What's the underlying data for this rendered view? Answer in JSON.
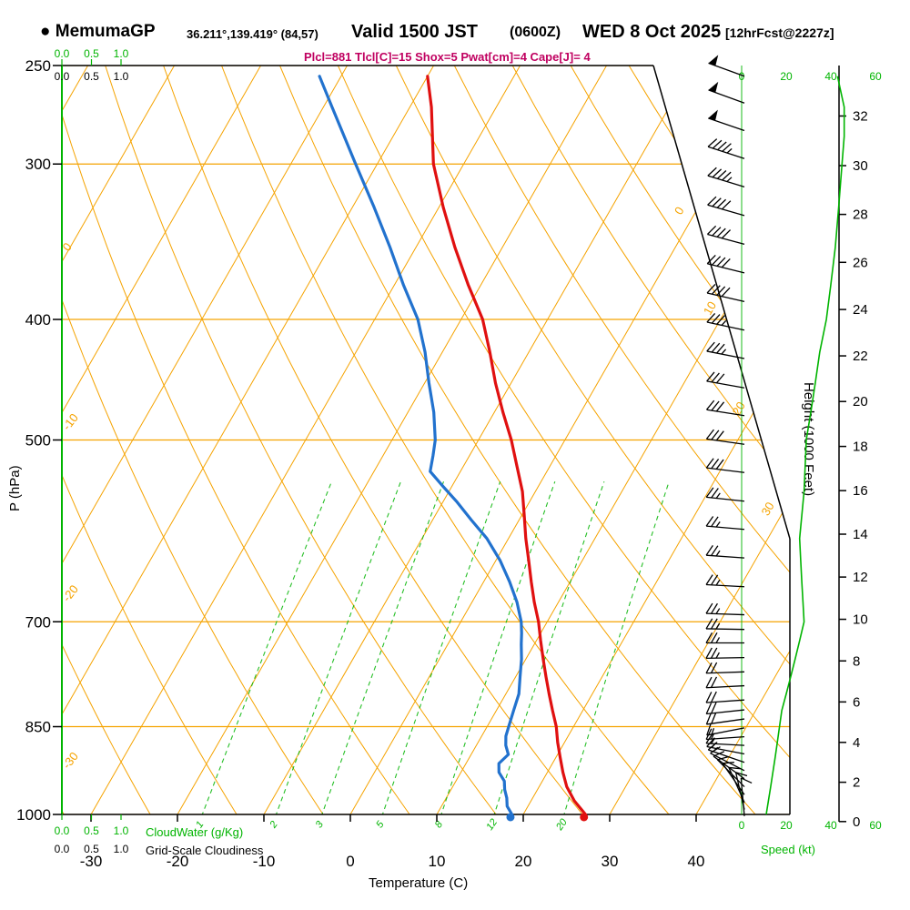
{
  "header": {
    "bullet": "●",
    "station": "MemumaGP",
    "coords": "36.211°,139.419° (84,57)",
    "valid_prefix": "Valid 1500 JST",
    "valid_zulu": "(0600Z)",
    "valid_date": "WED 8 Oct 2025",
    "forecast_tag": "[12hrFcst@2227z]",
    "params_line": "Plcl=881 Tlcl[C]=15 Shox=5 Pwat[cm]=4 Cape[J]= 4"
  },
  "axes": {
    "pressure_label": "P (hPa)",
    "pressure_ticks": [
      250,
      300,
      400,
      500,
      700,
      850,
      1000
    ],
    "temp_label": "Temperature (C)",
    "temp_ticks": [
      -30,
      -20,
      -10,
      0,
      10,
      20,
      30,
      40
    ],
    "height_label": "Height (1000 Feet)",
    "height_ticks": [
      0,
      2,
      4,
      6,
      8,
      10,
      12,
      14,
      16,
      18,
      20,
      22,
      24,
      26,
      28,
      30,
      32
    ],
    "speed_label": "Speed (kt)",
    "speed_ticks": [
      0,
      20,
      40,
      60
    ],
    "cloudwater_label": "CloudWater (g/Kg)",
    "cloudiness_label": "Grid-Scale Cloudiness",
    "cloud_ticks": [
      "0.0",
      "0.5",
      "1.0"
    ]
  },
  "colors": {
    "grid": "#F5A300",
    "green": "#00B400",
    "red": "#E01010",
    "blue": "#2272CE",
    "magenta": "#C00060",
    "black": "#000000"
  },
  "chart_data": {
    "type": "skewt-logp",
    "title": "MemumaGP sounding valid 1500 JST (0600Z) WED 8 Oct 2025, 12hr forecast",
    "pressure_range_hpa": [
      250,
      1000
    ],
    "temperature_range_c": [
      -30,
      40
    ],
    "isotherm_labels_right": [
      0,
      10,
      20,
      30
    ],
    "adiabat_labels_left": [
      -30,
      -20,
      -10,
      0,
      10
    ],
    "mixing_ratio_lines_gkg": [
      1,
      2,
      3,
      5,
      8,
      12,
      20
    ],
    "surface": {
      "pressure_hpa": 1005,
      "temp_c": 27.2,
      "dewpoint_c": 18.7
    },
    "temperature_profile": [
      [
        255,
        -40
      ],
      [
        270,
        -37.5
      ],
      [
        300,
        -33.5
      ],
      [
        325,
        -29.5
      ],
      [
        350,
        -25.5
      ],
      [
        375,
        -21.5
      ],
      [
        400,
        -17.5
      ],
      [
        425,
        -14.5
      ],
      [
        450,
        -11.8
      ],
      [
        475,
        -9
      ],
      [
        500,
        -6.2
      ],
      [
        525,
        -3.8
      ],
      [
        550,
        -1.5
      ],
      [
        575,
        0.3
      ],
      [
        600,
        2
      ],
      [
        625,
        3.8
      ],
      [
        650,
        5.5
      ],
      [
        675,
        7.2
      ],
      [
        700,
        9
      ],
      [
        725,
        10.5
      ],
      [
        750,
        12
      ],
      [
        775,
        13.5
      ],
      [
        800,
        15
      ],
      [
        825,
        16.5
      ],
      [
        850,
        18
      ],
      [
        875,
        19.2
      ],
      [
        900,
        20.5
      ],
      [
        925,
        21.8
      ],
      [
        950,
        23.2
      ],
      [
        975,
        25
      ],
      [
        1000,
        27.2
      ]
    ],
    "dewpoint_profile": [
      [
        255,
        -52.5
      ],
      [
        270,
        -49
      ],
      [
        300,
        -42.5
      ],
      [
        325,
        -37.5
      ],
      [
        350,
        -33
      ],
      [
        375,
        -29
      ],
      [
        400,
        -25
      ],
      [
        425,
        -22
      ],
      [
        450,
        -19.5
      ],
      [
        475,
        -17
      ],
      [
        500,
        -15
      ],
      [
        515,
        -14.2
      ],
      [
        530,
        -13.5
      ],
      [
        545,
        -11
      ],
      [
        560,
        -8.5
      ],
      [
        580,
        -5.5
      ],
      [
        600,
        -2.5
      ],
      [
        625,
        0.5
      ],
      [
        650,
        3
      ],
      [
        675,
        5.2
      ],
      [
        700,
        7
      ],
      [
        715,
        7.8
      ],
      [
        730,
        8.5
      ],
      [
        750,
        9.5
      ],
      [
        775,
        10.5
      ],
      [
        800,
        11.5
      ],
      [
        825,
        12
      ],
      [
        850,
        12.5
      ],
      [
        865,
        12.8
      ],
      [
        880,
        13.4
      ],
      [
        895,
        14.3
      ],
      [
        910,
        13.8
      ],
      [
        925,
        14.4
      ],
      [
        940,
        15.6
      ],
      [
        955,
        16.2
      ],
      [
        970,
        17
      ],
      [
        985,
        17.6
      ],
      [
        1000,
        18.7
      ]
    ],
    "wind_profile": [
      [
        255,
        290,
        50
      ],
      [
        268,
        290,
        50
      ],
      [
        282,
        289,
        48
      ],
      [
        297,
        288,
        45
      ],
      [
        313,
        287,
        45
      ],
      [
        330,
        286,
        42
      ],
      [
        348,
        285,
        40
      ],
      [
        367,
        284,
        40
      ],
      [
        387,
        283,
        38
      ],
      [
        408,
        282,
        36
      ],
      [
        430,
        281,
        34
      ],
      [
        454,
        280,
        32
      ],
      [
        478,
        279,
        30
      ],
      [
        504,
        278,
        30
      ],
      [
        531,
        277,
        28
      ],
      [
        560,
        276,
        27
      ],
      [
        590,
        275,
        26
      ],
      [
        622,
        274,
        25
      ],
      [
        656,
        273,
        25
      ],
      [
        691,
        272,
        26
      ],
      [
        710,
        271,
        25
      ],
      [
        728,
        270,
        24
      ],
      [
        748,
        269,
        23
      ],
      [
        768,
        268,
        22
      ],
      [
        788,
        267,
        21
      ],
      [
        809,
        266,
        20
      ],
      [
        824,
        264,
        18
      ],
      [
        838,
        262,
        18
      ],
      [
        852,
        259,
        17
      ],
      [
        866,
        266,
        16
      ],
      [
        880,
        273,
        15
      ],
      [
        894,
        281,
        14
      ],
      [
        908,
        289,
        13
      ],
      [
        922,
        297,
        12
      ],
      [
        936,
        306,
        12
      ],
      [
        950,
        315,
        11
      ],
      [
        964,
        325,
        10
      ],
      [
        978,
        336,
        10
      ],
      [
        991,
        347,
        9
      ],
      [
        1003,
        355,
        9
      ]
    ],
    "speed_profile_kt": [
      [
        1000,
        11
      ],
      [
        975,
        12
      ],
      [
        950,
        13
      ],
      [
        925,
        14
      ],
      [
        900,
        15
      ],
      [
        875,
        16
      ],
      [
        850,
        17
      ],
      [
        825,
        18
      ],
      [
        800,
        20
      ],
      [
        775,
        22
      ],
      [
        750,
        24
      ],
      [
        725,
        26
      ],
      [
        700,
        28
      ],
      [
        675,
        27.5
      ],
      [
        650,
        27
      ],
      [
        625,
        26.5
      ],
      [
        600,
        26
      ],
      [
        575,
        27
      ],
      [
        550,
        28
      ],
      [
        525,
        28.5
      ],
      [
        500,
        29
      ],
      [
        475,
        31
      ],
      [
        450,
        33
      ],
      [
        425,
        35
      ],
      [
        400,
        38
      ],
      [
        375,
        40
      ],
      [
        350,
        42
      ],
      [
        325,
        43.5
      ],
      [
        300,
        45
      ],
      [
        285,
        46
      ],
      [
        270,
        46
      ],
      [
        260,
        44
      ],
      [
        255,
        43
      ]
    ],
    "cloudwater_profile_gkg": 0,
    "grid_scale_cloudiness": 0
  }
}
